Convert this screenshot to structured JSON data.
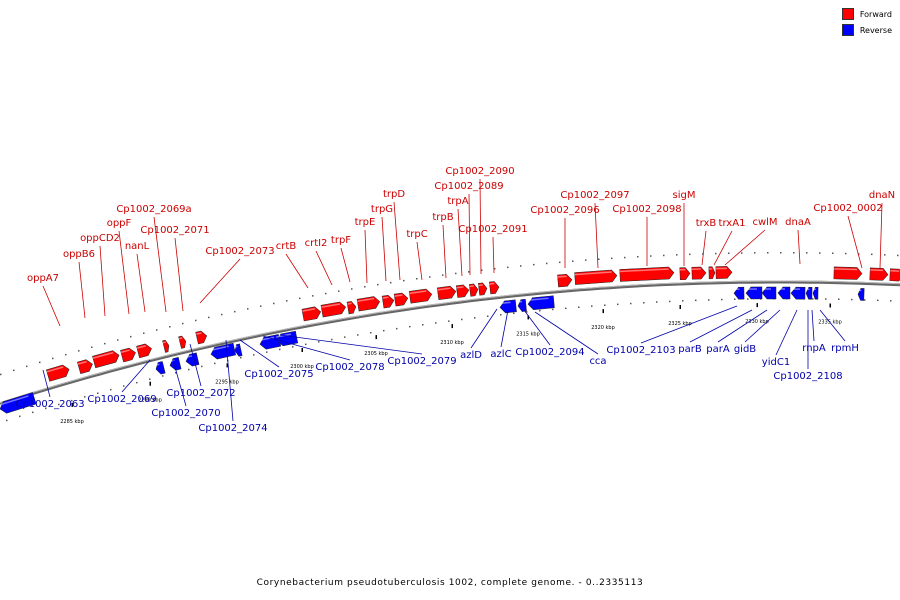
{
  "title": "Corynebacterium pseudotuberculosis 1002, complete genome. - 0..2335113",
  "legend": {
    "forward": {
      "label": "Forward",
      "color": "#ff0000"
    },
    "reverse": {
      "label": "Reverse",
      "color": "#0000ff"
    }
  },
  "backbone_color": "#666666",
  "ticks": [
    "2285 kbp",
    "2290 kbp",
    "2295 kbp",
    "2300 kbp",
    "2305 kbp",
    "2310 kbp",
    "2315 kbp",
    "2320 kbp",
    "2325 kbp",
    "2330 kbp",
    "2335 kbp"
  ],
  "forward_genes": [
    "oppA7",
    "oppB6",
    "oppCD2",
    "oppF",
    "nanL",
    "Cp1002_2069a",
    "Cp1002_2071",
    "Cp1002_2073",
    "crtB",
    "crtI2",
    "trpF",
    "trpE",
    "trpG",
    "trpD",
    "trpC",
    "trpB",
    "trpA",
    "Cp1002_2089",
    "Cp1002_2090",
    "Cp1002_2091",
    "Cp1002_2096",
    "Cp1002_2097",
    "Cp1002_2098",
    "sigM",
    "trxB",
    "trxA1",
    "cwlM",
    "dnaA",
    "Cp1002_0002",
    "dnaN"
  ],
  "reverse_genes": [
    "Cp1002_2063",
    "Cp1002_2069",
    "Cp1002_2070",
    "Cp1002_2072",
    "Cp1002_2074",
    "Cp1002_2075",
    "Cp1002_2078",
    "Cp1002_2079",
    "azlD",
    "azlC",
    "Cp1002_2094",
    "cca",
    "Cp1002_2103",
    "parB",
    "parA",
    "gidB",
    "yidC1",
    "Cp1002_2108",
    "rnpA",
    "rpmH"
  ]
}
